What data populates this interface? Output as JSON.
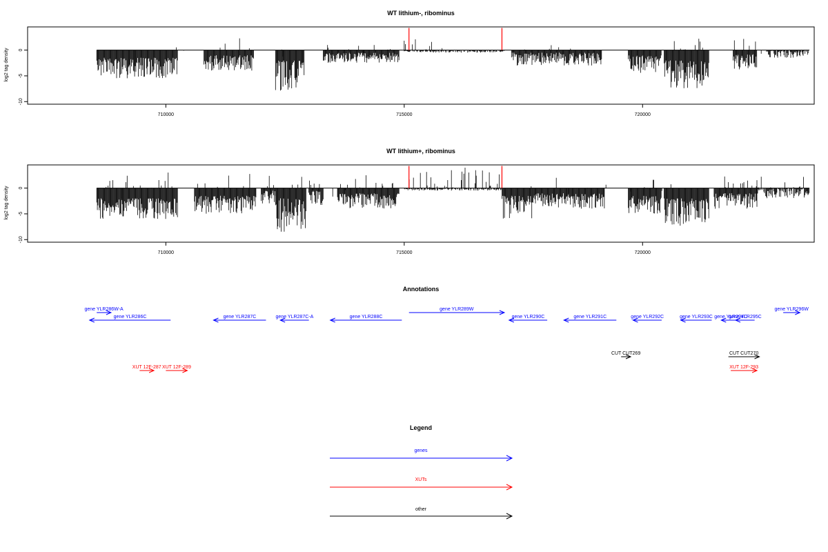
{
  "panels": [
    {
      "title": "WT lithium-, ribominus",
      "ylabel": "log2 tag density"
    },
    {
      "title": "WT lithium+, ribominus",
      "ylabel": "log2 tag density"
    }
  ],
  "annotations_title": "Annotations",
  "legend": {
    "title": "Legend",
    "items": [
      {
        "label": "genes",
        "color": "#0000ff"
      },
      {
        "label": "XUTs",
        "color": "#ff0000"
      },
      {
        "label": "other",
        "color": "#000000"
      }
    ]
  },
  "chart_data": [
    {
      "type": "bar",
      "title": "WT lithium-, ribominus",
      "xlabel": "",
      "ylabel": "log2 tag density",
      "xlim": [
        707100,
        723600
      ],
      "ylim": [
        -10.5,
        4.5
      ],
      "xticks": [
        710000,
        715000,
        720000
      ],
      "xtick_labels": [
        "710000",
        "715000",
        "720000"
      ],
      "yticks": [
        0,
        -5,
        -10
      ],
      "ytick_labels": [
        "0",
        "-5",
        "-10"
      ],
      "highlight_positions": [
        715100,
        717050
      ],
      "highlight_color": "#ff0000",
      "features": [
        {
          "x0": 708550,
          "x1": 710250,
          "min": -5.5,
          "max": -1.5,
          "pos_density": 0.15,
          "pos_max": 1.5
        },
        {
          "x0": 710800,
          "x1": 711850,
          "min": -4.0,
          "max": -1.0,
          "pos_density": 0.15,
          "pos_max": 2.2
        },
        {
          "x0": 712300,
          "x1": 712900,
          "min": -8.5,
          "max": -2.0,
          "pos_density": 0.1,
          "pos_max": 1.0
        },
        {
          "x0": 713300,
          "x1": 714900,
          "min": -2.5,
          "max": -0.5,
          "pos_density": 0.2,
          "pos_max": 1.5
        },
        {
          "x0": 717250,
          "x1": 719150,
          "min": -3.0,
          "max": -0.5,
          "pos_density": 0.15,
          "pos_max": 1.2
        },
        {
          "x0": 719700,
          "x1": 720400,
          "min": -4.5,
          "max": -1.0,
          "pos_density": 0.1,
          "pos_max": 1.5
        },
        {
          "x0": 720450,
          "x1": 721400,
          "min": -7.5,
          "max": -2.0,
          "pos_density": 0.15,
          "pos_max": 2.5
        },
        {
          "x0": 721900,
          "x1": 722400,
          "min": -4.0,
          "max": -0.8,
          "pos_density": 0.3,
          "pos_max": 3.3
        },
        {
          "x0": 715000,
          "x1": 717100,
          "min": -0.5,
          "max": 0,
          "pos_density": 0.3,
          "pos_max": 2.5
        },
        {
          "x0": 722600,
          "x1": 723500,
          "min": -1.5,
          "max": 0,
          "pos_density": 0.15,
          "pos_max": 2.8
        }
      ]
    },
    {
      "type": "bar",
      "title": "WT lithium+, ribominus",
      "xlabel": "",
      "ylabel": "log2 tag density",
      "xlim": [
        707100,
        723600
      ],
      "ylim": [
        -10.5,
        4.5
      ],
      "xticks": [
        710000,
        715000,
        720000
      ],
      "xtick_labels": [
        "710000",
        "715000",
        "720000"
      ],
      "yticks": [
        0,
        -5,
        -10
      ],
      "ytick_labels": [
        "0",
        "-5",
        "-10"
      ],
      "highlight_positions": [
        715100,
        717050
      ],
      "highlight_color": "#ff0000",
      "features": [
        {
          "x0": 708550,
          "x1": 710250,
          "min": -6.0,
          "max": -2.0,
          "pos_density": 0.4,
          "pos_max": 3.5
        },
        {
          "x0": 710600,
          "x1": 711900,
          "min": -5.0,
          "max": -1.5,
          "pos_density": 0.5,
          "pos_max": 3.5
        },
        {
          "x0": 712000,
          "x1": 712300,
          "min": -3.0,
          "max": -0.5,
          "pos_density": 0.5,
          "pos_max": 2.5
        },
        {
          "x0": 712300,
          "x1": 712950,
          "min": -8.5,
          "max": -2.0,
          "pos_density": 0.3,
          "pos_max": 2.0
        },
        {
          "x0": 713000,
          "x1": 713300,
          "min": -3.5,
          "max": -0.5,
          "pos_density": 0.3,
          "pos_max": 2.0
        },
        {
          "x0": 713600,
          "x1": 714900,
          "min": -4.0,
          "max": -1.0,
          "pos_density": 0.4,
          "pos_max": 3.0
        },
        {
          "x0": 715000,
          "x1": 717050,
          "min": -0.5,
          "max": 0,
          "pos_density": 0.8,
          "pos_max": 4.0
        },
        {
          "x0": 717050,
          "x1": 717700,
          "min": -6.0,
          "max": -1.5,
          "pos_density": 0.1,
          "pos_max": 1.0
        },
        {
          "x0": 717700,
          "x1": 719200,
          "min": -4.0,
          "max": -1.0,
          "pos_density": 0.1,
          "pos_max": 1.0
        },
        {
          "x0": 719700,
          "x1": 720400,
          "min": -5.0,
          "max": -1.5,
          "pos_density": 0.2,
          "pos_max": 3.0
        },
        {
          "x0": 720450,
          "x1": 721400,
          "min": -7.5,
          "max": -2.0,
          "pos_density": 0.2,
          "pos_max": 2.0
        },
        {
          "x0": 721500,
          "x1": 722400,
          "min": -4.0,
          "max": -1.0,
          "pos_density": 0.4,
          "pos_max": 2.5
        },
        {
          "x0": 722400,
          "x1": 723500,
          "min": -2.0,
          "max": 0,
          "pos_density": 0.3,
          "pos_max": 2.5
        }
      ]
    },
    {
      "type": "annotation_track",
      "title": "Annotations",
      "xlim": [
        707100,
        723600
      ],
      "features": [
        {
          "label": "gene YLR286W-A",
          "x0": 708550,
          "x1": 708850,
          "row": 0,
          "strand": "+",
          "color": "#0000ff"
        },
        {
          "label": "gene YLR286C",
          "x0": 708400,
          "x1": 710100,
          "row": 1,
          "strand": "-",
          "color": "#0000ff"
        },
        {
          "label": "gene YLR287C",
          "x0": 711000,
          "x1": 712100,
          "row": 1,
          "strand": "-",
          "color": "#0000ff"
        },
        {
          "label": "gene YLR287C-A",
          "x0": 712400,
          "x1": 713000,
          "row": 1,
          "strand": "-",
          "color": "#0000ff"
        },
        {
          "label": "gene YLR288C",
          "x0": 713450,
          "x1": 714950,
          "row": 1,
          "strand": "-",
          "color": "#0000ff"
        },
        {
          "label": "gene YLR289W",
          "x0": 715100,
          "x1": 717100,
          "row": 0,
          "strand": "+",
          "color": "#0000ff"
        },
        {
          "label": "gene YLR290C",
          "x0": 717200,
          "x1": 718000,
          "row": 1,
          "strand": "-",
          "color": "#0000ff"
        },
        {
          "label": "gene YLR291C",
          "x0": 718350,
          "x1": 719450,
          "row": 1,
          "strand": "-",
          "color": "#0000ff"
        },
        {
          "label": "gene YLR292C",
          "x0": 719800,
          "x1": 720400,
          "row": 1,
          "strand": "-",
          "color": "#0000ff"
        },
        {
          "label": "gene YLR293C",
          "x0": 720800,
          "x1": 721450,
          "row": 1,
          "strand": "-",
          "color": "#0000ff"
        },
        {
          "label": "gene YLR294C",
          "x0": 721650,
          "x1": 722050,
          "row": 1,
          "strand": "-",
          "color": "#0000ff"
        },
        {
          "label": "gene YLR295C",
          "x0": 721950,
          "x1": 722350,
          "row": 1,
          "strand": "-",
          "color": "#0000ff"
        },
        {
          "label": "gene YLR296W",
          "x0": 722950,
          "x1": 723300,
          "row": 0,
          "strand": "+",
          "color": "#0000ff"
        },
        {
          "label": "CUT CUT269",
          "x0": 719550,
          "x1": 719750,
          "row": 2,
          "strand": "+",
          "color": "#000000"
        },
        {
          "label": "CUT CUT270",
          "x0": 721800,
          "x1": 722450,
          "row": 2,
          "strand": "+",
          "color": "#000000"
        },
        {
          "label": "XUT 12F-287",
          "x0": 709450,
          "x1": 709750,
          "row": 3,
          "strand": "+",
          "color": "#ff0000"
        },
        {
          "label": "XUT 12F-289",
          "x0": 710000,
          "x1": 710450,
          "row": 3,
          "strand": "+",
          "color": "#ff0000"
        },
        {
          "label": "XUT 12F-293",
          "x0": 721850,
          "x1": 722400,
          "row": 3,
          "strand": "+",
          "color": "#ff0000"
        }
      ]
    }
  ]
}
